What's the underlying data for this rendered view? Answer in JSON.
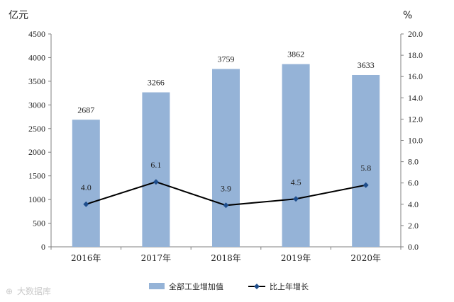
{
  "chart_data": {
    "type": "bar",
    "categories": [
      "2016年",
      "2017年",
      "2018年",
      "2019年",
      "2020年"
    ],
    "series": [
      {
        "name": "全部工业增加值",
        "type": "bar",
        "axis": "left",
        "values": [
          2687,
          3266,
          3759,
          3862,
          3633
        ],
        "labels": [
          "2687",
          "3266",
          "3759",
          "3862",
          "3633"
        ]
      },
      {
        "name": "比上年增长",
        "type": "line",
        "axis": "right",
        "values": [
          4.0,
          6.1,
          3.9,
          4.5,
          5.8
        ],
        "labels": [
          "4.0",
          "6.1",
          "3.9",
          "4.5",
          "5.8"
        ]
      }
    ],
    "ylabel_left": "亿元",
    "ylabel_right": "%",
    "ylim_left": [
      0,
      4500
    ],
    "ylim_right": [
      0,
      20
    ],
    "yticks_left": [
      "0",
      "500",
      "1000",
      "1500",
      "2000",
      "2500",
      "3000",
      "3500",
      "4000",
      "4500"
    ],
    "yticks_right": [
      "0.0",
      "2.0",
      "4.0",
      "6.0",
      "8.0",
      "10.0",
      "12.0",
      "14.0",
      "16.0",
      "18.0",
      "20.0"
    ],
    "grid": false,
    "legend_position": "bottom",
    "colors": {
      "bar": "#95b3d7",
      "line": "#000000",
      "marker": "#1f4e8c"
    }
  },
  "watermark": "大数据库"
}
